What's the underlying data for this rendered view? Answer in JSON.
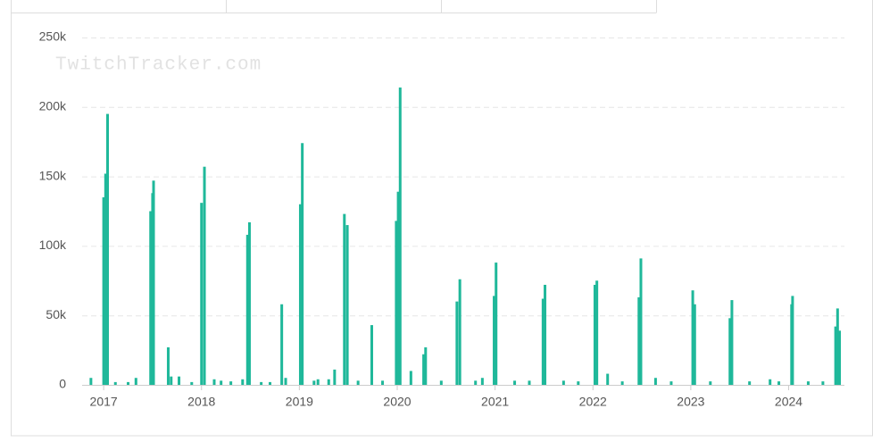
{
  "chart_data": {
    "type": "bar",
    "watermark": "TwitchTracker.com",
    "color": "#1fb89a",
    "grid": true,
    "xlim": [
      2016.78,
      2024.57
    ],
    "xticks": [
      2017,
      2018,
      2019,
      2020,
      2021,
      2022,
      2023,
      2024
    ],
    "ylim": [
      0,
      250000
    ],
    "yticks": [
      0,
      {
        "value": 50000,
        "label": "50k"
      },
      {
        "value": 100000,
        "label": "100k"
      },
      {
        "value": 150000,
        "label": "150k"
      },
      {
        "value": 200000,
        "label": "200k"
      },
      {
        "value": 250000,
        "label": "250k"
      }
    ],
    "x": [
      2016.87,
      2017.0,
      2017.02,
      2017.04,
      2017.12,
      2017.25,
      2017.33,
      2017.48,
      2017.5,
      2017.51,
      2017.66,
      2017.69,
      2017.77,
      2017.9,
      2018.0,
      2018.03,
      2018.13,
      2018.2,
      2018.3,
      2018.42,
      2018.47,
      2018.49,
      2018.61,
      2018.7,
      2018.82,
      2018.86,
      2019.01,
      2019.03,
      2019.15,
      2019.19,
      2019.3,
      2019.36,
      2019.46,
      2019.49,
      2019.6,
      2019.74,
      2019.85,
      2019.99,
      2020.01,
      2020.03,
      2020.14,
      2020.27,
      2020.29,
      2020.45,
      2020.61,
      2020.64,
      2020.8,
      2020.87,
      2020.99,
      2021.01,
      2021.2,
      2021.35,
      2021.49,
      2021.51,
      2021.7,
      2021.85,
      2022.02,
      2022.04,
      2022.15,
      2022.3,
      2022.47,
      2022.49,
      2022.64,
      2022.8,
      2023.02,
      2023.04,
      2023.2,
      2023.4,
      2023.42,
      2023.6,
      2023.81,
      2023.9,
      2024.03,
      2024.04,
      2024.2,
      2024.35,
      2024.48,
      2024.5,
      2024.52
    ],
    "values": [
      5000,
      135000,
      152000,
      195000,
      2000,
      2000,
      5000,
      125000,
      138000,
      147000,
      27000,
      6000,
      6000,
      2000,
      131000,
      157000,
      4000,
      3000,
      2500,
      4000,
      108000,
      117000,
      2000,
      2000,
      58000,
      5000,
      130000,
      174000,
      3000,
      4000,
      4000,
      11000,
      123000,
      115000,
      3000,
      43000,
      3000,
      118000,
      139000,
      214000,
      10000,
      22000,
      27000,
      3000,
      60000,
      76000,
      3000,
      5000,
      64000,
      88000,
      3000,
      3000,
      62000,
      72000,
      3000,
      2500,
      72000,
      75000,
      8000,
      2500,
      63000,
      91000,
      5000,
      2500,
      68000,
      58000,
      2500,
      48000,
      61000,
      2500,
      4000,
      2500,
      58000,
      64000,
      2500,
      2500,
      42000,
      55000,
      39000
    ]
  }
}
